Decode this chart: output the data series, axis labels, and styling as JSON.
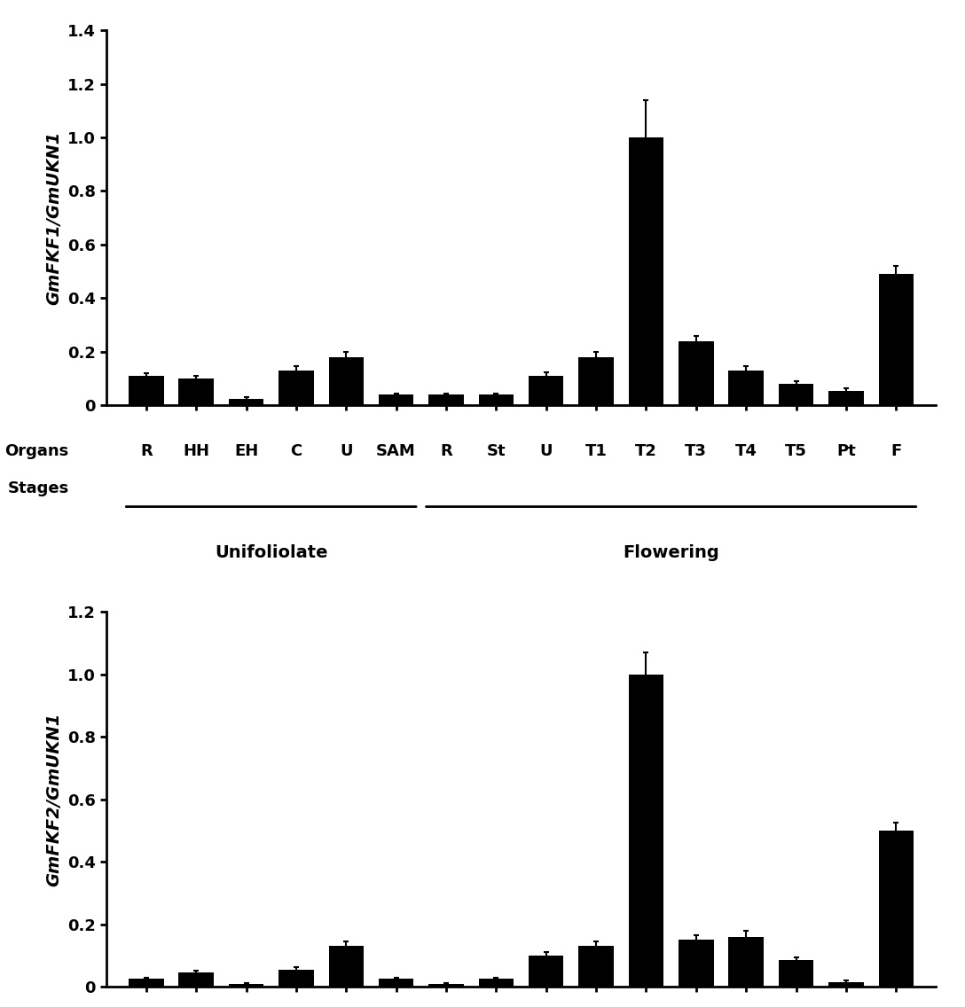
{
  "chart1": {
    "ylabel": "GmFKF1/GmUKN1",
    "ylim": [
      0,
      1.4
    ],
    "yticks": [
      0,
      0.2,
      0.4,
      0.6,
      0.8,
      1.0,
      1.2,
      1.4
    ],
    "values": [
      0.11,
      0.1,
      0.025,
      0.13,
      0.18,
      0.04,
      0.04,
      0.04,
      0.11,
      0.18,
      1.0,
      0.24,
      0.13,
      0.08,
      0.055,
      0.49
    ],
    "errors": [
      0.01,
      0.01,
      0.005,
      0.015,
      0.02,
      0.005,
      0.005,
      0.005,
      0.015,
      0.02,
      0.14,
      0.02,
      0.015,
      0.01,
      0.01,
      0.03
    ]
  },
  "chart2": {
    "ylabel": "GmFKF2/GmUKN1",
    "ylim": [
      0,
      1.2
    ],
    "yticks": [
      0,
      0.2,
      0.4,
      0.6,
      0.8,
      1.0,
      1.2
    ],
    "values": [
      0.025,
      0.045,
      0.01,
      0.055,
      0.13,
      0.025,
      0.01,
      0.025,
      0.1,
      0.13,
      1.0,
      0.15,
      0.16,
      0.085,
      0.015,
      0.5
    ],
    "errors": [
      0.005,
      0.008,
      0.003,
      0.008,
      0.015,
      0.005,
      0.003,
      0.005,
      0.01,
      0.015,
      0.07,
      0.015,
      0.02,
      0.01,
      0.005,
      0.025
    ]
  },
  "labels": [
    "R",
    "HH",
    "EH",
    "C",
    "U",
    "SAM",
    "R",
    "St",
    "U",
    "T1",
    "T2",
    "T3",
    "T4",
    "T5",
    "Pt",
    "F"
  ],
  "unifoliolate_indices": [
    0,
    1,
    2,
    3,
    4,
    5
  ],
  "flowering_indices": [
    6,
    7,
    8,
    9,
    10,
    11,
    12,
    13,
    14,
    15
  ],
  "bar_color": "#000000",
  "bar_width": 0.7,
  "organs_label": "Organs",
  "stages_label": "Stages",
  "unifoliolate_text": "Unifoliolate",
  "flowering_text": "Flowering",
  "font_size_labels": 13,
  "font_size_yticks": 13,
  "font_size_ylabel": 14,
  "font_size_organs": 13,
  "font_size_group": 14
}
